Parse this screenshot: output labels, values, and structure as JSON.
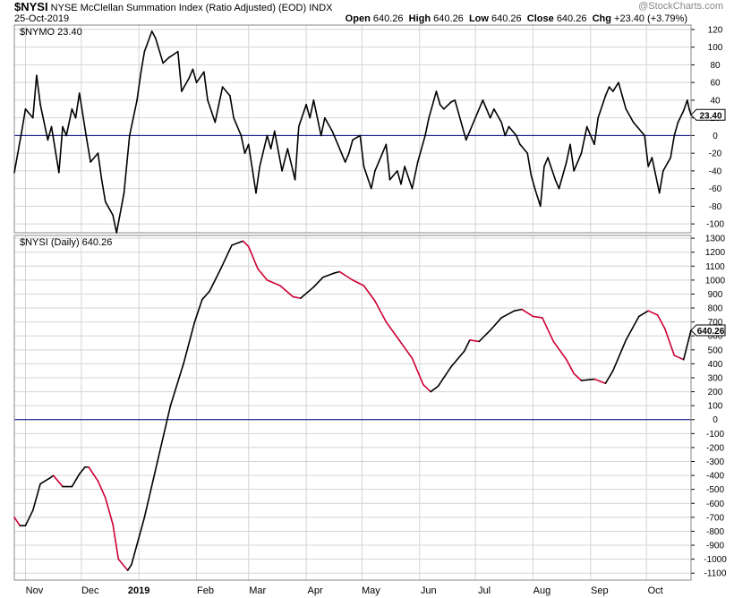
{
  "header": {
    "symbol": "$NYSI",
    "name": "NYSE McClellan Summation Index (Ratio Adjusted) (EOD)",
    "exchange": "INDX",
    "date": "25-Oct-2019",
    "watermark": "@StockCharts.com",
    "open_label": "Open",
    "open": "640.26",
    "high_label": "High",
    "high": "640.26",
    "low_label": "Low",
    "low": "640.26",
    "close_label": "Close",
    "close": "640.26",
    "chg_label": "Chg",
    "chg": "+23.40 (+3.79%)"
  },
  "colors": {
    "line": "#000000",
    "falling": "#cc0033",
    "zero_line": "#000080",
    "grid": "#d4d4d4",
    "last_value_box": "#000000"
  },
  "chart_data": [
    {
      "type": "line",
      "panel": "top",
      "legend": "$NYMO 23.40",
      "last_value": "23.40",
      "ylim": [
        -110,
        125
      ],
      "yticks": [
        -100,
        -80,
        -60,
        -40,
        -20,
        0,
        20,
        40,
        60,
        80,
        100,
        120
      ],
      "zero_line": 0,
      "grid": true,
      "x_range": [
        "2018-10-26",
        "2019-10-25"
      ],
      "points": [
        [
          "2018-10-26",
          -42
        ],
        [
          "2018-10-30",
          5
        ],
        [
          "2018-11-01",
          30
        ],
        [
          "2018-11-05",
          20
        ],
        [
          "2018-11-07",
          68
        ],
        [
          "2018-11-09",
          35
        ],
        [
          "2018-11-13",
          -5
        ],
        [
          "2018-11-15",
          10
        ],
        [
          "2018-11-19",
          -42
        ],
        [
          "2018-11-21",
          10
        ],
        [
          "2018-11-23",
          0
        ],
        [
          "2018-11-26",
          30
        ],
        [
          "2018-11-28",
          20
        ],
        [
          "2018-11-30",
          48
        ],
        [
          "2018-12-04",
          -5
        ],
        [
          "2018-12-06",
          -30
        ],
        [
          "2018-12-10",
          -20
        ],
        [
          "2018-12-12",
          -50
        ],
        [
          "2018-12-14",
          -75
        ],
        [
          "2018-12-18",
          -90
        ],
        [
          "2018-12-20",
          -110
        ],
        [
          "2018-12-24",
          -65
        ],
        [
          "2018-12-27",
          0
        ],
        [
          "2018-12-31",
          40
        ],
        [
          "2019-01-02",
          70
        ],
        [
          "2019-01-04",
          95
        ],
        [
          "2019-01-08",
          118
        ],
        [
          "2019-01-10",
          110
        ],
        [
          "2019-01-14",
          82
        ],
        [
          "2019-01-17",
          88
        ],
        [
          "2019-01-22",
          95
        ],
        [
          "2019-01-24",
          50
        ],
        [
          "2019-01-28",
          65
        ],
        [
          "2019-01-30",
          75
        ],
        [
          "2019-02-01",
          60
        ],
        [
          "2019-02-05",
          72
        ],
        [
          "2019-02-07",
          40
        ],
        [
          "2019-02-11",
          15
        ],
        [
          "2019-02-13",
          35
        ],
        [
          "2019-02-15",
          55
        ],
        [
          "2019-02-19",
          45
        ],
        [
          "2019-02-21",
          20
        ],
        [
          "2019-02-25",
          0
        ],
        [
          "2019-02-27",
          -20
        ],
        [
          "2019-03-01",
          -10
        ],
        [
          "2019-03-05",
          -65
        ],
        [
          "2019-03-07",
          -35
        ],
        [
          "2019-03-11",
          0
        ],
        [
          "2019-03-13",
          -15
        ],
        [
          "2019-03-15",
          5
        ],
        [
          "2019-03-19",
          -40
        ],
        [
          "2019-03-22",
          -15
        ],
        [
          "2019-03-26",
          -50
        ],
        [
          "2019-03-28",
          10
        ],
        [
          "2019-04-01",
          35
        ],
        [
          "2019-04-03",
          20
        ],
        [
          "2019-04-05",
          40
        ],
        [
          "2019-04-09",
          0
        ],
        [
          "2019-04-11",
          20
        ],
        [
          "2019-04-15",
          5
        ],
        [
          "2019-04-17",
          -5
        ],
        [
          "2019-04-22",
          -30
        ],
        [
          "2019-04-24",
          -20
        ],
        [
          "2019-04-26",
          -5
        ],
        [
          "2019-04-30",
          0
        ],
        [
          "2019-05-02",
          -35
        ],
        [
          "2019-05-06",
          -60
        ],
        [
          "2019-05-08",
          -40
        ],
        [
          "2019-05-10",
          -30
        ],
        [
          "2019-05-14",
          -10
        ],
        [
          "2019-05-16",
          -50
        ],
        [
          "2019-05-20",
          -40
        ],
        [
          "2019-05-22",
          -55
        ],
        [
          "2019-05-24",
          -35
        ],
        [
          "2019-05-28",
          -60
        ],
        [
          "2019-05-31",
          -30
        ],
        [
          "2019-06-04",
          0
        ],
        [
          "2019-06-06",
          20
        ],
        [
          "2019-06-10",
          50
        ],
        [
          "2019-06-12",
          35
        ],
        [
          "2019-06-14",
          30
        ],
        [
          "2019-06-18",
          38
        ],
        [
          "2019-06-20",
          40
        ],
        [
          "2019-06-24",
          10
        ],
        [
          "2019-06-26",
          -5
        ],
        [
          "2019-06-28",
          5
        ],
        [
          "2019-07-02",
          25
        ],
        [
          "2019-07-05",
          40
        ],
        [
          "2019-07-09",
          20
        ],
        [
          "2019-07-11",
          30
        ],
        [
          "2019-07-15",
          15
        ],
        [
          "2019-07-17",
          0
        ],
        [
          "2019-07-19",
          10
        ],
        [
          "2019-07-23",
          0
        ],
        [
          "2019-07-25",
          -10
        ],
        [
          "2019-07-29",
          -20
        ],
        [
          "2019-07-31",
          -45
        ],
        [
          "2019-08-02",
          -60
        ],
        [
          "2019-08-05",
          -80
        ],
        [
          "2019-08-07",
          -35
        ],
        [
          "2019-08-09",
          -25
        ],
        [
          "2019-08-13",
          -50
        ],
        [
          "2019-08-15",
          -60
        ],
        [
          "2019-08-19",
          -30
        ],
        [
          "2019-08-21",
          -10
        ],
        [
          "2019-08-23",
          -40
        ],
        [
          "2019-08-27",
          -20
        ],
        [
          "2019-08-29",
          0
        ],
        [
          "2019-08-30",
          10
        ],
        [
          "2019-09-03",
          -10
        ],
        [
          "2019-09-05",
          20
        ],
        [
          "2019-09-09",
          45
        ],
        [
          "2019-09-11",
          55
        ],
        [
          "2019-09-13",
          50
        ],
        [
          "2019-09-16",
          60
        ],
        [
          "2019-09-18",
          45
        ],
        [
          "2019-09-20",
          30
        ],
        [
          "2019-09-24",
          15
        ],
        [
          "2019-09-26",
          10
        ],
        [
          "2019-09-30",
          0
        ],
        [
          "2019-10-02",
          -35
        ],
        [
          "2019-10-04",
          -25
        ],
        [
          "2019-10-08",
          -65
        ],
        [
          "2019-10-10",
          -40
        ],
        [
          "2019-10-14",
          -25
        ],
        [
          "2019-10-16",
          0
        ],
        [
          "2019-10-18",
          15
        ],
        [
          "2019-10-21",
          28
        ],
        [
          "2019-10-23",
          40
        ],
        [
          "2019-10-24",
          30
        ],
        [
          "2019-10-25",
          23.4
        ]
      ]
    },
    {
      "type": "line",
      "panel": "bottom",
      "legend": "$NYSI (Daily) 640.26",
      "last_value": "640.26",
      "ylim": [
        -1150,
        1320
      ],
      "yticks": [
        -1100,
        -1000,
        -900,
        -800,
        -700,
        -600,
        -500,
        -400,
        -300,
        -200,
        -100,
        0,
        100,
        200,
        300,
        400,
        500,
        600,
        700,
        800,
        900,
        1000,
        1100,
        1200,
        1300
      ],
      "zero_line": 0,
      "grid": true,
      "x_range": [
        "2018-10-26",
        "2019-10-25"
      ],
      "points": [
        [
          "2018-10-26",
          -700
        ],
        [
          "2018-10-29",
          -760
        ],
        [
          "2018-11-01",
          -760
        ],
        [
          "2018-11-05",
          -650
        ],
        [
          "2018-11-09",
          -460
        ],
        [
          "2018-11-14",
          -420
        ],
        [
          "2018-11-16",
          -400
        ],
        [
          "2018-11-21",
          -480
        ],
        [
          "2018-11-26",
          -480
        ],
        [
          "2018-11-30",
          -390
        ],
        [
          "2018-12-03",
          -340
        ],
        [
          "2018-12-05",
          -340
        ],
        [
          "2018-12-10",
          -440
        ],
        [
          "2018-12-14",
          -560
        ],
        [
          "2018-12-18",
          -750
        ],
        [
          "2018-12-21",
          -1000
        ],
        [
          "2018-12-26",
          -1080
        ],
        [
          "2018-12-28",
          -1040
        ],
        [
          "2019-01-04",
          -700
        ],
        [
          "2019-01-11",
          -300
        ],
        [
          "2019-01-18",
          100
        ],
        [
          "2019-01-25",
          400
        ],
        [
          "2019-01-31",
          700
        ],
        [
          "2019-02-04",
          860
        ],
        [
          "2019-02-08",
          920
        ],
        [
          "2019-02-14",
          1080
        ],
        [
          "2019-02-20",
          1250
        ],
        [
          "2019-02-26",
          1280
        ],
        [
          "2019-03-01",
          1240
        ],
        [
          "2019-03-06",
          1080
        ],
        [
          "2019-03-11",
          1000
        ],
        [
          "2019-03-18",
          960
        ],
        [
          "2019-03-25",
          880
        ],
        [
          "2019-03-29",
          870
        ],
        [
          "2019-04-05",
          950
        ],
        [
          "2019-04-10",
          1020
        ],
        [
          "2019-04-16",
          1050
        ],
        [
          "2019-04-19",
          1060
        ],
        [
          "2019-04-26",
          1000
        ],
        [
          "2019-05-02",
          960
        ],
        [
          "2019-05-08",
          850
        ],
        [
          "2019-05-14",
          700
        ],
        [
          "2019-05-21",
          570
        ],
        [
          "2019-05-28",
          440
        ],
        [
          "2019-06-03",
          250
        ],
        [
          "2019-06-07",
          200
        ],
        [
          "2019-06-11",
          240
        ],
        [
          "2019-06-18",
          380
        ],
        [
          "2019-06-25",
          490
        ],
        [
          "2019-06-28",
          570
        ],
        [
          "2019-07-03",
          560
        ],
        [
          "2019-07-09",
          640
        ],
        [
          "2019-07-15",
          730
        ],
        [
          "2019-07-22",
          780
        ],
        [
          "2019-07-26",
          790
        ],
        [
          "2019-08-01",
          740
        ],
        [
          "2019-08-06",
          730
        ],
        [
          "2019-08-12",
          560
        ],
        [
          "2019-08-19",
          430
        ],
        [
          "2019-08-23",
          330
        ],
        [
          "2019-08-27",
          280
        ],
        [
          "2019-09-03",
          290
        ],
        [
          "2019-09-09",
          260
        ],
        [
          "2019-09-13",
          350
        ],
        [
          "2019-09-20",
          570
        ],
        [
          "2019-09-27",
          740
        ],
        [
          "2019-10-02",
          780
        ],
        [
          "2019-10-07",
          750
        ],
        [
          "2019-10-11",
          650
        ],
        [
          "2019-10-16",
          460
        ],
        [
          "2019-10-21",
          430
        ],
        [
          "2019-10-25",
          640.26
        ]
      ]
    }
  ],
  "x_axis": {
    "months": [
      {
        "label": "Nov",
        "date": "2018-11-01"
      },
      {
        "label": "Dec",
        "date": "2018-12-01"
      },
      {
        "label": "2019",
        "date": "2019-01-01",
        "bold": true
      },
      {
        "label": "Feb",
        "date": "2019-02-01"
      },
      {
        "label": "Mar",
        "date": "2019-03-01"
      },
      {
        "label": "Apr",
        "date": "2019-04-01"
      },
      {
        "label": "May",
        "date": "2019-05-01"
      },
      {
        "label": "Jun",
        "date": "2019-06-01"
      },
      {
        "label": "Jul",
        "date": "2019-07-01"
      },
      {
        "label": "Aug",
        "date": "2019-08-01"
      },
      {
        "label": "Sep",
        "date": "2019-09-01"
      },
      {
        "label": "Oct",
        "date": "2019-10-01"
      }
    ]
  }
}
